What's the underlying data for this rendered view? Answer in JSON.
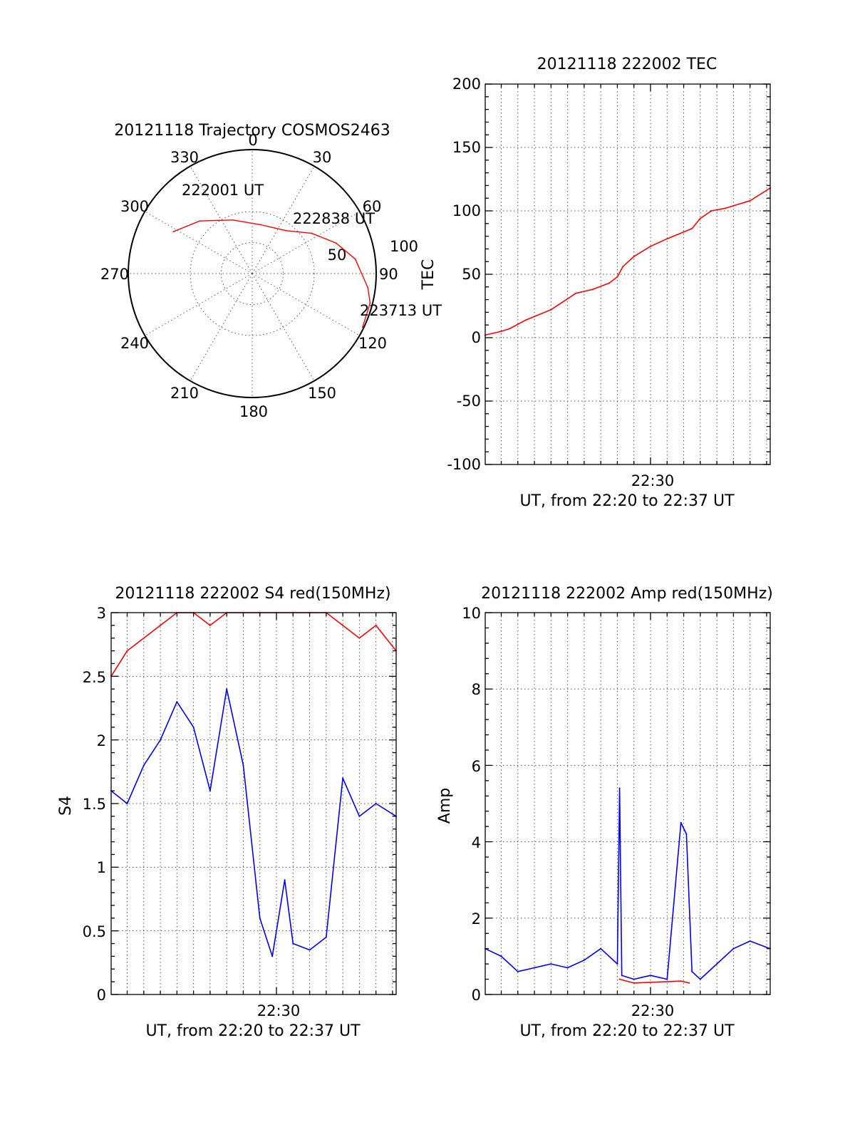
{
  "colors": {
    "trace_red": "#ff0000",
    "trace_blue": "#0000ff",
    "grid": "#555555",
    "axes": "#000000"
  },
  "chart_data": [
    {
      "type": "scatter",
      "subtype": "polar",
      "title": "20121118 Trajectory COSMOS2463",
      "azimuth_labels": [
        "0",
        "30",
        "60",
        "90",
        "120",
        "150",
        "180",
        "210",
        "240",
        "270",
        "300",
        "330"
      ],
      "radial_labels": [
        "50",
        "100"
      ],
      "radial_range": [
        0,
        100
      ],
      "grid": true,
      "series": [
        {
          "color": "#ff0000",
          "points": [
            {
              "azimuth": 298,
              "radius": 72
            },
            {
              "azimuth": 315,
              "radius": 60
            },
            {
              "azimuth": 340,
              "radius": 46
            },
            {
              "azimuth": 10,
              "radius": 40
            },
            {
              "azimuth": 38,
              "radius": 44
            },
            {
              "azimuth": 56,
              "radius": 58
            },
            {
              "azimuth": 70,
              "radius": 72
            },
            {
              "azimuth": 82,
              "radius": 84
            },
            {
              "azimuth": 97,
              "radius": 94
            },
            {
              "azimuth": 104,
              "radius": 98
            },
            {
              "azimuth": 116,
              "radius": 99
            }
          ]
        }
      ],
      "annotations": [
        {
          "text": "222001 UT"
        },
        {
          "text": "222838 UT"
        },
        {
          "text": "223713 UT"
        }
      ]
    },
    {
      "type": "line",
      "title": "20121118 222002 TEC",
      "xlabel": "UT, from 22:20 to 22:37 UT",
      "ylabel": "TEC",
      "x_tick_labels": [
        "22:30"
      ],
      "xlim": [
        "22:20:02",
        "22:37:13"
      ],
      "ylim": [
        -100,
        200
      ],
      "yticks": [
        -100,
        -50,
        0,
        50,
        100,
        150,
        200
      ],
      "grid": true,
      "series": [
        {
          "color": "#ff0000",
          "x": [
            "22:20:02",
            "22:21:00",
            "22:21:30",
            "22:22:30",
            "22:24:00",
            "22:25:30",
            "22:26:30",
            "22:27:30",
            "22:28:00",
            "22:28:20",
            "22:29:00",
            "22:30:00",
            "22:31:00",
            "22:32:30",
            "22:33:00",
            "22:33:40",
            "22:34:30",
            "22:35:00",
            "22:36:00",
            "22:37:13"
          ],
          "y": [
            2,
            5,
            7,
            14,
            22,
            35,
            38,
            43,
            48,
            56,
            64,
            72,
            78,
            86,
            94,
            100,
            102,
            104,
            108,
            118
          ]
        }
      ]
    },
    {
      "type": "line",
      "title": "20121118 222002 S4 red(150MHz)",
      "xlabel": "UT, from 22:20 to 22:37 UT",
      "ylabel": "S4",
      "x_tick_labels": [
        "22:30"
      ],
      "xlim": [
        "22:20:02",
        "22:37:13"
      ],
      "ylim": [
        0,
        3
      ],
      "yticks": [
        "0",
        "0.5",
        "1",
        "1.5",
        "2",
        "2.5",
        "3"
      ],
      "grid": true,
      "series": [
        {
          "color": "#ff0000",
          "x": [
            "22:20:02",
            "22:21:00",
            "22:22:00",
            "22:23:00",
            "22:24:00",
            "22:25:00",
            "22:26:00",
            "22:27:00",
            "22:28:00",
            "22:29:00",
            "22:30:00",
            "22:31:00",
            "22:32:00",
            "22:33:00",
            "22:34:00",
            "22:35:00",
            "22:36:00",
            "22:37:13"
          ],
          "y": [
            2.5,
            2.7,
            2.8,
            2.9,
            3.0,
            3.0,
            2.9,
            3.0,
            3.0,
            3.0,
            3.0,
            3.0,
            3.0,
            3.0,
            2.9,
            2.8,
            2.9,
            2.7
          ]
        },
        {
          "color": "#0000ff",
          "x": [
            "22:20:02",
            "22:21:00",
            "22:22:00",
            "22:23:00",
            "22:24:00",
            "22:25:00",
            "22:26:00",
            "22:27:00",
            "22:28:00",
            "22:29:00",
            "22:29:45",
            "22:30:30",
            "22:31:00",
            "22:32:00",
            "22:33:00",
            "22:34:00",
            "22:35:00",
            "22:36:00",
            "22:37:13"
          ],
          "y": [
            1.6,
            1.5,
            1.8,
            2.0,
            2.3,
            2.1,
            1.6,
            2.4,
            1.8,
            0.6,
            0.3,
            0.9,
            0.4,
            0.35,
            0.45,
            1.7,
            1.4,
            1.5,
            1.4
          ]
        }
      ]
    },
    {
      "type": "line",
      "title": "20121118 222002 Amp red(150MHz)",
      "xlabel": "UT, from 22:20 to 22:37 UT",
      "ylabel": "Amp",
      "x_tick_labels": [
        "22:30"
      ],
      "xlim": [
        "22:20:02",
        "22:37:13"
      ],
      "ylim": [
        0,
        10
      ],
      "yticks": [
        0,
        2,
        4,
        6,
        8,
        10
      ],
      "grid": true,
      "series": [
        {
          "color": "#0000ff",
          "x": [
            "22:20:02",
            "22:21:00",
            "22:22:00",
            "22:23:00",
            "22:24:00",
            "22:25:00",
            "22:26:00",
            "22:27:00",
            "22:28:00",
            "22:28:08",
            "22:28:16",
            "22:29:00",
            "22:30:00",
            "22:31:00",
            "22:31:50",
            "22:32:10",
            "22:32:30",
            "22:33:00",
            "22:34:00",
            "22:35:00",
            "22:36:00",
            "22:37:13"
          ],
          "y": [
            1.2,
            1.0,
            0.6,
            0.7,
            0.8,
            0.7,
            0.9,
            1.2,
            0.8,
            5.4,
            0.5,
            0.4,
            0.5,
            0.4,
            4.5,
            4.2,
            0.6,
            0.4,
            0.8,
            1.2,
            1.4,
            1.2
          ]
        },
        {
          "color": "#ff0000",
          "x": [
            "22:28:08",
            "22:29:00",
            "22:31:50",
            "22:32:20"
          ],
          "y": [
            0.4,
            0.3,
            0.35,
            0.3
          ]
        }
      ]
    }
  ]
}
